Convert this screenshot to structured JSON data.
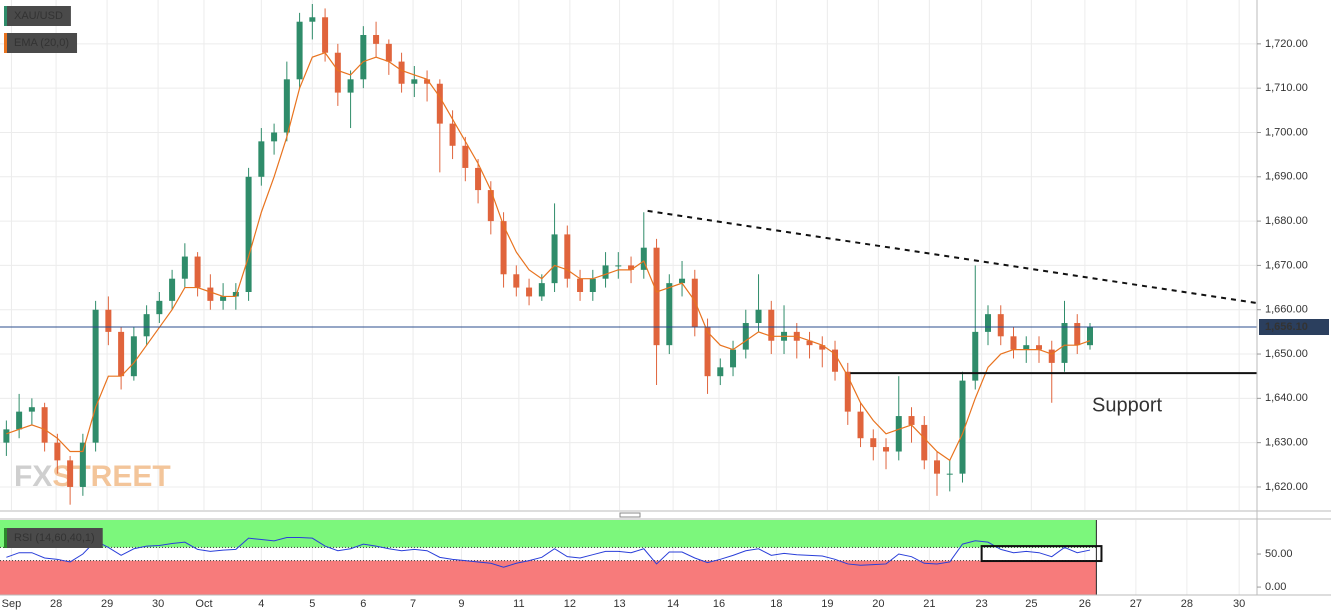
{
  "chart_data": [
    {
      "type": "candlestick",
      "series": [
        {
          "name": "XAU/USD",
          "color_up": "#2f8c6a",
          "color_down": "#e0643c",
          "open": [
            1630,
            1633,
            1637,
            1638,
            1630,
            1626,
            1620,
            1630,
            1660,
            1655,
            1645,
            1654,
            1659,
            1662,
            1667,
            1672,
            1665,
            1662,
            1663,
            1664,
            1690,
            1698,
            1700,
            1712,
            1725,
            1726,
            1718,
            1709,
            1712,
            1722,
            1720,
            1716,
            1711,
            1712,
            1711,
            1702,
            1697,
            1692,
            1687,
            1680,
            1668,
            1665,
            1663,
            1666,
            1677,
            1667,
            1664,
            1667,
            1670,
            1670,
            1669,
            1674,
            1652,
            1666,
            1667,
            1656,
            1645,
            1647,
            1651,
            1657,
            1660,
            1653,
            1655,
            1653,
            1652,
            1651,
            1646,
            1637,
            1631,
            1629,
            1628,
            1636,
            1634,
            1626,
            1623,
            1623,
            1644,
            1655,
            1659,
            1654,
            1651,
            1652,
            1651,
            1648,
            1657,
            1652
          ],
          "high": [
            1635,
            1641,
            1640,
            1639,
            1632,
            1627,
            1632,
            1662,
            1663,
            1656,
            1656,
            1661,
            1664,
            1669,
            1675,
            1673,
            1668,
            1666,
            1666,
            1692,
            1701,
            1702,
            1716,
            1727,
            1729,
            1728,
            1720,
            1714,
            1724,
            1725,
            1721,
            1718,
            1715,
            1714,
            1712,
            1705,
            1699,
            1694,
            1689,
            1682,
            1670,
            1667,
            1668,
            1684,
            1679,
            1669,
            1669,
            1673,
            1673,
            1672,
            1682,
            1676,
            1668,
            1671,
            1669,
            1658,
            1649,
            1653,
            1660,
            1668,
            1662,
            1661,
            1657,
            1655,
            1654,
            1653,
            1648,
            1639,
            1633,
            1631,
            1645,
            1638,
            1636,
            1628,
            1626,
            1646,
            1670,
            1661,
            1661,
            1656,
            1654,
            1654,
            1653,
            1662,
            1659,
            1657
          ],
          "low": [
            1627,
            1631,
            1634,
            1628,
            1623,
            1616,
            1618,
            1628,
            1652,
            1642,
            1644,
            1652,
            1657,
            1660,
            1665,
            1663,
            1660,
            1660,
            1660,
            1662,
            1688,
            1695,
            1698,
            1710,
            1721,
            1716,
            1706,
            1701,
            1710,
            1717,
            1713,
            1709,
            1708,
            1707,
            1691,
            1694,
            1689,
            1684,
            1677,
            1665,
            1663,
            1661,
            1662,
            1664,
            1665,
            1662,
            1662,
            1665,
            1667,
            1666,
            1667,
            1643,
            1650,
            1663,
            1654,
            1641,
            1643,
            1645,
            1649,
            1655,
            1650,
            1650,
            1649,
            1649,
            1647,
            1644,
            1634,
            1629,
            1626,
            1624,
            1626,
            1630,
            1624,
            1618,
            1619,
            1621,
            1642,
            1652,
            1652,
            1649,
            1648,
            1648,
            1639,
            1646,
            1650,
            1651
          ],
          "close": [
            1633,
            1637,
            1638,
            1630,
            1626,
            1620,
            1630,
            1660,
            1655,
            1645,
            1654,
            1659,
            1662,
            1667,
            1672,
            1665,
            1662,
            1663,
            1664,
            1690,
            1698,
            1700,
            1712,
            1725,
            1726,
            1718,
            1709,
            1712,
            1722,
            1720,
            1716,
            1711,
            1712,
            1711,
            1702,
            1697,
            1692,
            1687,
            1680,
            1668,
            1665,
            1663,
            1666,
            1677,
            1667,
            1664,
            1667,
            1670,
            1670,
            1669,
            1674,
            1652,
            1666,
            1667,
            1656,
            1645,
            1647,
            1651,
            1657,
            1660,
            1653,
            1655,
            1653,
            1652,
            1651,
            1646,
            1637,
            1631,
            1629,
            1628,
            1636,
            1634,
            1626,
            1623,
            1623,
            1644,
            1655,
            1659,
            1654,
            1651,
            1652,
            1651,
            1648,
            1657,
            1652,
            1656.1
          ]
        },
        {
          "name": "EMA (20,0)",
          "type": "line",
          "color": "#e8731f",
          "values": [
            1632,
            1633,
            1634,
            1633,
            1631,
            1628,
            1628,
            1638,
            1645,
            1645,
            1648,
            1652,
            1656,
            1660,
            1665,
            1665,
            1664,
            1663,
            1663,
            1672,
            1682,
            1690,
            1699,
            1710,
            1717,
            1718,
            1714,
            1713,
            1716,
            1717,
            1716,
            1714,
            1713,
            1712,
            1708,
            1703,
            1698,
            1693,
            1687,
            1679,
            1673,
            1669,
            1667,
            1670,
            1669,
            1667,
            1667,
            1668,
            1669,
            1669,
            1671,
            1664,
            1665,
            1666,
            1662,
            1655,
            1652,
            1651,
            1653,
            1655,
            1654,
            1654,
            1654,
            1653,
            1652,
            1650,
            1645,
            1639,
            1635,
            1632,
            1633,
            1634,
            1631,
            1628,
            1626,
            1632,
            1640,
            1647,
            1650,
            1651,
            1651,
            1651,
            1650,
            1652,
            1652,
            1653
          ]
        }
      ],
      "xlim": [
        -0.5,
        98.1
      ],
      "ylim": [
        1614.8,
        1729.9
      ],
      "yticks": [
        {
          "value": 1620,
          "label": "1,620.00"
        },
        {
          "value": 1630,
          "label": "1,630.00"
        },
        {
          "value": 1640,
          "label": "1,640.00"
        },
        {
          "value": 1650,
          "label": "1,650.00"
        },
        {
          "value": 1660,
          "label": "1,660.00"
        },
        {
          "value": 1670,
          "label": "1,670.00"
        },
        {
          "value": 1680,
          "label": "1,680.00"
        },
        {
          "value": 1690,
          "label": "1,690.00"
        },
        {
          "value": 1700,
          "label": "1,700.00"
        },
        {
          "value": 1710,
          "label": "1,710.00"
        },
        {
          "value": 1720,
          "label": "1,720.00"
        }
      ],
      "grid": true,
      "last_price": {
        "value": 1656.1,
        "label": "1,656.10"
      },
      "last_price_color": "#2b4d8c",
      "trendline": {
        "x": [
          50.3,
          98.1
        ],
        "y": [
          1682.3,
          1661.5
        ]
      },
      "support": {
        "x": [
          66.2,
          98.1
        ],
        "y": 1645.7,
        "label": "Support"
      },
      "watermark": [
        "FX",
        "STREET"
      ]
    },
    {
      "type": "line",
      "series": [
        {
          "name": "RSI (14,60,40,1)",
          "color": "#2a3fd9",
          "values": [
            45,
            52,
            52,
            44,
            42,
            38,
            50,
            70,
            60,
            48,
            58,
            62,
            63,
            66,
            68,
            57,
            54,
            56,
            57,
            74,
            72,
            70,
            75,
            75,
            74,
            62,
            55,
            58,
            65,
            62,
            58,
            55,
            57,
            55,
            45,
            42,
            40,
            38,
            36,
            30,
            36,
            40,
            45,
            58,
            46,
            44,
            49,
            54,
            54,
            52,
            58,
            35,
            53,
            53,
            44,
            37,
            42,
            48,
            55,
            58,
            48,
            51,
            49,
            48,
            47,
            42,
            35,
            33,
            34,
            35,
            50,
            46,
            36,
            35,
            38,
            65,
            70,
            68,
            57,
            52,
            54,
            52,
            46,
            60,
            52,
            56
          ]
        }
      ],
      "levels": [
        60,
        40
      ],
      "zone_colors": [
        "#7cf77c",
        "#f77b7b"
      ],
      "box": {
        "x": [
          76.5,
          85.9
        ],
        "y": [
          39.4,
          62
        ]
      },
      "xlim": [
        -0.5,
        98.1
      ],
      "ylim": [
        -12,
        101.5
      ],
      "yticks": [
        {
          "value": 0,
          "label": "0.00"
        },
        {
          "value": 50,
          "label": "50.00"
        }
      ],
      "xticks": [
        {
          "value": 0.4,
          "label": "Sep"
        },
        {
          "value": 3.9,
          "label": "28"
        },
        {
          "value": 7.9,
          "label": "29"
        },
        {
          "value": 11.9,
          "label": "30"
        },
        {
          "value": 15.5,
          "label": "Oct"
        },
        {
          "value": 20,
          "label": "4"
        },
        {
          "value": 24,
          "label": "5"
        },
        {
          "value": 28,
          "label": "6"
        },
        {
          "value": 31.9,
          "label": "7"
        },
        {
          "value": 35.7,
          "label": "9"
        },
        {
          "value": 40.2,
          "label": "11"
        },
        {
          "value": 44.2,
          "label": "12"
        },
        {
          "value": 48.1,
          "label": "13"
        },
        {
          "value": 52.3,
          "label": "14"
        },
        {
          "value": 55.9,
          "label": "16"
        },
        {
          "value": 60.4,
          "label": "18"
        },
        {
          "value": 64.4,
          "label": "19"
        },
        {
          "value": 68.4,
          "label": "20"
        },
        {
          "value": 72.4,
          "label": "21"
        },
        {
          "value": 76.5,
          "label": "23"
        },
        {
          "value": 80.4,
          "label": "25"
        },
        {
          "value": 84.6,
          "label": "26"
        },
        {
          "value": 88.6,
          "label": "27"
        },
        {
          "value": 92.6,
          "label": "28"
        },
        {
          "value": 96.7,
          "label": "30"
        }
      ]
    }
  ]
}
